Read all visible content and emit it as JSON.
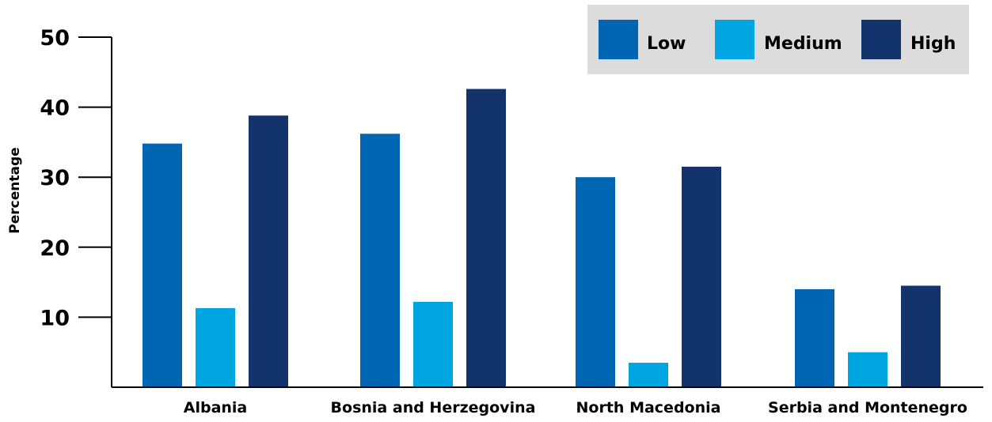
{
  "chart_data": {
    "type": "bar",
    "title": "",
    "xlabel": "",
    "ylabel": "Percentage",
    "ylim": [
      0,
      50
    ],
    "yticks": [
      10,
      20,
      30,
      40,
      50
    ],
    "grid": false,
    "legend_position": "top-right",
    "categories": [
      "Albania",
      "Bosnia and Herzegovina",
      "North Macedonia",
      "Serbia and Montenegro"
    ],
    "series": [
      {
        "name": "Low",
        "color": "#0066B3",
        "values": [
          34.8,
          36.2,
          30.0,
          14.0
        ]
      },
      {
        "name": "Medium",
        "color": "#00A6E2",
        "values": [
          11.3,
          12.2,
          3.5,
          5.0
        ]
      },
      {
        "name": "High",
        "color": "#12336B",
        "values": [
          38.8,
          42.6,
          31.5,
          14.5
        ]
      }
    ]
  }
}
